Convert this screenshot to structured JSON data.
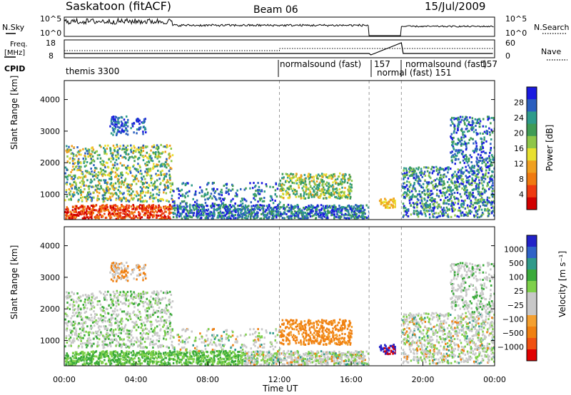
{
  "header": {
    "site": "Saskatoon (fitACF)",
    "beam": "Beam 06",
    "date": "15/Jul/2009"
  },
  "strips": {
    "nsky_label": "N.Sky",
    "nsearch_label": "N.Search",
    "freq_label_1": "Freq.",
    "freq_label_2": "[MHz]",
    "nave_label": "Nave",
    "cpid_label": "CPID",
    "nsky_ticks": [
      "10^5",
      "10^0"
    ],
    "nsearch_ticks": [
      "10^5",
      "10^0"
    ],
    "freq_ticks": [
      "18",
      "8"
    ],
    "nave_ticks": [
      "60",
      "0"
    ],
    "cpid_segments": [
      {
        "label": "themis 3300",
        "start_hour": 0.0
      },
      {
        "label": "normalsound (fast)",
        "start_hour": 12.0
      },
      {
        "label": "157",
        "start_hour": 17.0
      },
      {
        "label": "normal (fast) 151",
        "start_hour": 17.1
      },
      {
        "label": "normalsound (fast)",
        "start_hour": 18.8
      },
      {
        "label": "157",
        "start_hour": 24.0
      }
    ]
  },
  "chart_data": [
    {
      "type": "heatmap",
      "name": "power",
      "ylabel": "Slant Range [km]",
      "xlim": [
        0,
        24
      ],
      "ylim": [
        200,
        4600
      ],
      "yticks": [
        1000,
        2000,
        3000,
        4000
      ],
      "colorbar": {
        "label": "Power [dB]",
        "ticks": [
          "28",
          "24",
          "20",
          "16",
          "12",
          "8",
          "4"
        ],
        "colors": [
          "#1a1ae0",
          "#2b5fbf",
          "#2e9b8b",
          "#3f9b55",
          "#8ec64a",
          "#e8e030",
          "#f0a020",
          "#f07a10",
          "#ee3a10",
          "#d10000"
        ]
      },
      "data_gaps_hours": [
        [
          17.0,
          17.5
        ],
        [
          18.5,
          18.8
        ]
      ]
    },
    {
      "type": "heatmap",
      "name": "velocity",
      "ylabel": "Slant Range [km]",
      "xlabel": "Time UT",
      "xlim": [
        0,
        24
      ],
      "ylim": [
        200,
        4600
      ],
      "yticks": [
        1000,
        2000,
        3000,
        4000
      ],
      "xticks": [
        "00:00",
        "04:00",
        "08:00",
        "12:00",
        "16:00",
        "20:00",
        "00:00"
      ],
      "colorbar": {
        "label": "Velocity [m s⁻¹]",
        "ticks": [
          "1000",
          "500",
          "100",
          "25",
          "−25",
          "−100",
          "−500",
          "−1000"
        ],
        "colors": [
          "#2222c8",
          "#2f63c8",
          "#2f9a8a",
          "#3aaa3a",
          "#7ed04a",
          "#c8c8c8",
          "#c8c8c8",
          "#f4a030",
          "#f08010",
          "#f05010",
          "#e00000"
        ]
      },
      "data_gaps_hours": [
        [
          17.0,
          17.5
        ],
        [
          18.5,
          18.8
        ]
      ]
    }
  ]
}
